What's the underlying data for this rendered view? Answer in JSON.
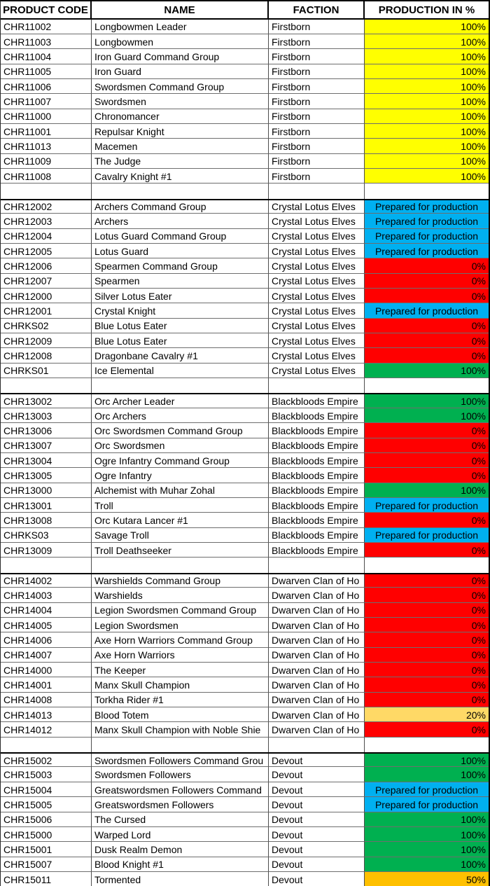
{
  "table": {
    "headers": [
      "PRODUCT CODE",
      "NAME",
      "FACTION",
      "PRODUCTION IN %"
    ],
    "status_colors": {
      "yellow": "#FFFF00",
      "blue": "#00B0F0",
      "red": "#FF0000",
      "green": "#00B050",
      "gold": "#FFD966",
      "orange": "#FFC000"
    },
    "groups": [
      {
        "faction": "Firstborn",
        "rows": [
          {
            "code": "CHR11002",
            "name": "Longbowmen Leader",
            "production": {
              "text": "100%",
              "color": "yellow",
              "align": "right"
            }
          },
          {
            "code": "CHR11003",
            "name": "Longbowmen",
            "production": {
              "text": "100%",
              "color": "yellow",
              "align": "right"
            }
          },
          {
            "code": "CHR11004",
            "name": "Iron Guard Command Group",
            "production": {
              "text": "100%",
              "color": "yellow",
              "align": "right"
            }
          },
          {
            "code": "CHR11005",
            "name": "Iron Guard",
            "production": {
              "text": "100%",
              "color": "yellow",
              "align": "right"
            }
          },
          {
            "code": "CHR11006",
            "name": "Swordsmen Command Group",
            "production": {
              "text": "100%",
              "color": "yellow",
              "align": "right"
            }
          },
          {
            "code": "CHR11007",
            "name": "Swordsmen",
            "production": {
              "text": "100%",
              "color": "yellow",
              "align": "right"
            }
          },
          {
            "code": "CHR11000",
            "name": "Chronomancer",
            "production": {
              "text": "100%",
              "color": "yellow",
              "align": "right"
            }
          },
          {
            "code": "CHR11001",
            "name": "Repulsar Knight",
            "production": {
              "text": "100%",
              "color": "yellow",
              "align": "right"
            }
          },
          {
            "code": "CHR11013",
            "name": "Macemen",
            "production": {
              "text": "100%",
              "color": "yellow",
              "align": "right"
            }
          },
          {
            "code": "CHR11009",
            "name": "The Judge",
            "production": {
              "text": "100%",
              "color": "yellow",
              "align": "right"
            }
          },
          {
            "code": "CHR11008",
            "name": "Cavalry Knight #1",
            "production": {
              "text": "100%",
              "color": "yellow",
              "align": "right"
            }
          }
        ]
      },
      {
        "faction": "Crystal Lotus Elves",
        "rows": [
          {
            "code": "CHR12002",
            "name": "Archers Command Group",
            "production": {
              "text": "Prepared for production",
              "color": "blue",
              "align": "center"
            }
          },
          {
            "code": "CHR12003",
            "name": "Archers",
            "production": {
              "text": "Prepared for production",
              "color": "blue",
              "align": "center"
            }
          },
          {
            "code": "CHR12004",
            "name": "Lotus Guard Command Group",
            "production": {
              "text": "Prepared for production",
              "color": "blue",
              "align": "center"
            }
          },
          {
            "code": "CHR12005",
            "name": "Lotus Guard",
            "production": {
              "text": "Prepared for production",
              "color": "blue",
              "align": "center"
            }
          },
          {
            "code": "CHR12006",
            "name": "Spearmen Command Group",
            "production": {
              "text": "0%",
              "color": "red",
              "align": "right"
            }
          },
          {
            "code": "CHR12007",
            "name": "Spearmen",
            "production": {
              "text": "0%",
              "color": "red",
              "align": "right"
            }
          },
          {
            "code": "CHR12000",
            "name": "Silver Lotus Eater",
            "production": {
              "text": "0%",
              "color": "red",
              "align": "right"
            }
          },
          {
            "code": "CHR12001",
            "name": "Crystal Knight",
            "production": {
              "text": "Prepared for production",
              "color": "blue",
              "align": "center"
            }
          },
          {
            "code": "CHRKS02",
            "name": "Blue Lotus Eater",
            "production": {
              "text": "0%",
              "color": "red",
              "align": "right"
            }
          },
          {
            "code": "CHR12009",
            "name": "Blue Lotus Eater",
            "production": {
              "text": "0%",
              "color": "red",
              "align": "right"
            }
          },
          {
            "code": "CHR12008",
            "name": "Dragonbane Cavalry #1",
            "production": {
              "text": "0%",
              "color": "red",
              "align": "right"
            }
          },
          {
            "code": "CHRKS01",
            "name": "Ice Elemental",
            "production": {
              "text": "100%",
              "color": "green",
              "align": "right"
            }
          }
        ]
      },
      {
        "faction": "Blackbloods Empire",
        "rows": [
          {
            "code": "CHR13002",
            "name": "Orc Archer Leader",
            "production": {
              "text": "100%",
              "color": "green",
              "align": "right"
            }
          },
          {
            "code": "CHR13003",
            "name": "Orc Archers",
            "production": {
              "text": "100%",
              "color": "green",
              "align": "right"
            }
          },
          {
            "code": "CHR13006",
            "name": "Orc Swordsmen Command Group",
            "production": {
              "text": "0%",
              "color": "red",
              "align": "right"
            }
          },
          {
            "code": "CHR13007",
            "name": "Orc Swordsmen",
            "production": {
              "text": "0%",
              "color": "red",
              "align": "right"
            }
          },
          {
            "code": "CHR13004",
            "name": "Ogre Infantry Command Group",
            "production": {
              "text": "0%",
              "color": "red",
              "align": "right"
            }
          },
          {
            "code": "CHR13005",
            "name": "Ogre Infantry",
            "production": {
              "text": "0%",
              "color": "red",
              "align": "right"
            }
          },
          {
            "code": "CHR13000",
            "name": "Alchemist with Muhar Zohal",
            "production": {
              "text": "100%",
              "color": "green",
              "align": "right"
            }
          },
          {
            "code": "CHR13001",
            "name": "Troll",
            "production": {
              "text": "Prepared for production",
              "color": "blue",
              "align": "center"
            }
          },
          {
            "code": "CHR13008",
            "name": "Orc Kutara Lancer #1",
            "production": {
              "text": "0%",
              "color": "red",
              "align": "right"
            }
          },
          {
            "code": "CHRKS03",
            "name": "Savage Troll",
            "production": {
              "text": "Prepared for production",
              "color": "blue",
              "align": "center"
            }
          },
          {
            "code": "CHR13009",
            "name": "Troll Deathseeker",
            "production": {
              "text": "0%",
              "color": "red",
              "align": "right"
            }
          }
        ]
      },
      {
        "faction": "Dwarven Clan of Ho",
        "rows": [
          {
            "code": "CHR14002",
            "name": "Warshields Command Group",
            "production": {
              "text": "0%",
              "color": "red",
              "align": "right"
            }
          },
          {
            "code": "CHR14003",
            "name": "Warshields",
            "production": {
              "text": "0%",
              "color": "red",
              "align": "right"
            }
          },
          {
            "code": "CHR14004",
            "name": "Legion Swordsmen Command Group",
            "production": {
              "text": "0%",
              "color": "red",
              "align": "right"
            }
          },
          {
            "code": "CHR14005",
            "name": "Legion Swordsmen",
            "production": {
              "text": "0%",
              "color": "red",
              "align": "right"
            }
          },
          {
            "code": "CHR14006",
            "name": "Axe Horn Warriors Command Group",
            "production": {
              "text": "0%",
              "color": "red",
              "align": "right"
            }
          },
          {
            "code": "CHR14007",
            "name": "Axe Horn Warriors",
            "production": {
              "text": "0%",
              "color": "red",
              "align": "right"
            }
          },
          {
            "code": "CHR14000",
            "name": "The Keeper",
            "production": {
              "text": "0%",
              "color": "red",
              "align": "right"
            }
          },
          {
            "code": "CHR14001",
            "name": "Manx Skull Champion",
            "production": {
              "text": "0%",
              "color": "red",
              "align": "right"
            }
          },
          {
            "code": "CHR14008",
            "name": "Torkha Rider #1",
            "production": {
              "text": "0%",
              "color": "red",
              "align": "right"
            }
          },
          {
            "code": "CHR14013",
            "name": "Blood Totem",
            "production": {
              "text": "20%",
              "color": "gold",
              "align": "right"
            }
          },
          {
            "code": "CHR14012",
            "name": "Manx Skull Champion with Noble Shie",
            "production": {
              "text": "0%",
              "color": "red",
              "align": "right"
            }
          }
        ]
      },
      {
        "faction": "Devout",
        "rows": [
          {
            "code": "CHR15002",
            "name": "Swordsmen Followers Command Grou",
            "production": {
              "text": "100%",
              "color": "green",
              "align": "right"
            }
          },
          {
            "code": "CHR15003",
            "name": "Swordsmen Followers",
            "production": {
              "text": "100%",
              "color": "green",
              "align": "right"
            }
          },
          {
            "code": "CHR15004",
            "name": "Greatswordsmen Followers Command",
            "production": {
              "text": "Prepared for production",
              "color": "blue",
              "align": "center"
            }
          },
          {
            "code": "CHR15005",
            "name": "Greatswordsmen Followers",
            "production": {
              "text": "Prepared for production",
              "color": "blue",
              "align": "center"
            }
          },
          {
            "code": "CHR15006",
            "name": "The Cursed",
            "production": {
              "text": "100%",
              "color": "green",
              "align": "right"
            }
          },
          {
            "code": "CHR15000",
            "name": "Warped Lord",
            "production": {
              "text": "100%",
              "color": "green",
              "align": "right"
            }
          },
          {
            "code": "CHR15001",
            "name": "Dusk Realm Demon",
            "production": {
              "text": "100%",
              "color": "green",
              "align": "right"
            }
          },
          {
            "code": "CHR15007",
            "name": "Blood Knight #1",
            "production": {
              "text": "100%",
              "color": "green",
              "align": "right"
            }
          },
          {
            "code": "CHR15011",
            "name": "Tormented",
            "production": {
              "text": "50%",
              "color": "orange",
              "align": "right"
            }
          }
        ]
      }
    ]
  }
}
